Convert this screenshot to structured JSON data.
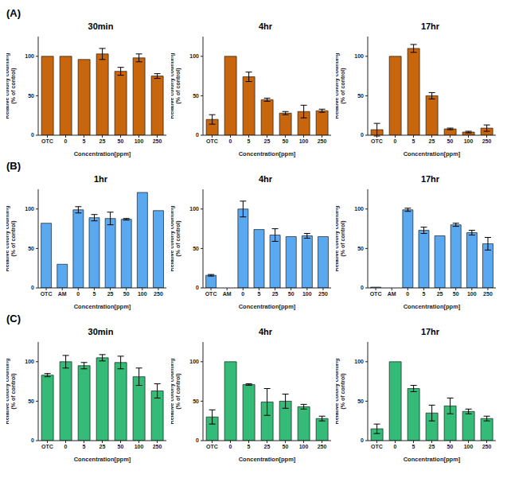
{
  "panel_labels": [
    "(A)",
    "(B)",
    "(C)"
  ],
  "chart_data": [
    {
      "type": "bar",
      "title": "30min",
      "categories": [
        "OTC",
        "0",
        "5",
        "25",
        "50",
        "100",
        "250"
      ],
      "values": [
        100,
        100,
        96,
        103,
        81,
        98,
        75
      ],
      "errors": [
        0,
        0,
        0,
        7,
        5,
        5,
        3
      ],
      "color": "#c8660e",
      "ylim": [
        0,
        125
      ],
      "yticks": [
        0,
        50,
        100
      ],
      "x_label": "Concentration[ppm]",
      "y_label": [
        "Relative colony counting",
        "(% of control)"
      ]
    },
    {
      "type": "bar",
      "title": "4hr",
      "categories": [
        "OTC",
        "0",
        "5",
        "25",
        "50",
        "100",
        "250"
      ],
      "values": [
        20,
        100,
        74,
        45,
        28,
        30,
        31
      ],
      "errors": [
        6,
        0,
        6,
        2,
        2,
        8,
        2
      ],
      "color": "#c8660e",
      "ylim": [
        0,
        125
      ],
      "yticks": [
        0,
        50,
        100
      ],
      "x_label": "Concentration[ppm]",
      "y_label": [
        "Relative colony counting",
        "(% of control)"
      ]
    },
    {
      "type": "bar",
      "title": "17hr",
      "categories": [
        "OTC",
        "0",
        "5",
        "25",
        "50",
        "100",
        "250"
      ],
      "values": [
        7,
        100,
        110,
        50,
        8,
        4,
        9
      ],
      "errors": [
        8,
        0,
        5,
        4,
        1,
        1,
        4
      ],
      "color": "#c8660e",
      "ylim": [
        0,
        125
      ],
      "yticks": [
        0,
        50,
        100
      ],
      "x_label": "Concentration[ppm]",
      "y_label": [
        "Relative colony counting",
        "(% of control)"
      ]
    },
    {
      "type": "bar",
      "title": "1hr",
      "categories": [
        "OTC",
        "AM",
        "0",
        "5",
        "25",
        "50",
        "100",
        "250"
      ],
      "values": [
        82,
        30,
        99,
        89,
        88,
        87,
        121,
        98
      ],
      "errors": [
        0,
        0,
        4,
        4,
        8,
        1,
        0,
        0
      ],
      "color": "#5aa9f0",
      "ylim": [
        0,
        125
      ],
      "yticks": [
        0,
        50,
        100
      ],
      "x_label": "Concentration[ppm]",
      "y_label": [
        "Relative colony counting",
        "(% of control)"
      ]
    },
    {
      "type": "bar",
      "title": "4hr",
      "categories": [
        "OTC",
        "AM",
        "0",
        "5",
        "25",
        "50",
        "100",
        "250"
      ],
      "values": [
        16,
        0,
        100,
        74,
        67,
        65,
        66,
        65
      ],
      "errors": [
        1,
        0,
        10,
        0,
        8,
        0,
        3,
        0
      ],
      "color": "#5aa9f0",
      "ylim": [
        0,
        125
      ],
      "yticks": [
        0,
        50,
        100
      ],
      "x_label": "Concentration[ppm]",
      "y_label": [
        "Relative colony counting",
        "(% of control)"
      ]
    },
    {
      "type": "bar",
      "title": "17hr",
      "categories": [
        "OTC",
        "AM",
        "0",
        "5",
        "25",
        "50",
        "100",
        "250"
      ],
      "values": [
        1,
        0,
        99,
        73,
        66,
        80,
        70,
        56
      ],
      "errors": [
        0,
        0,
        2,
        4,
        0,
        2,
        3,
        8
      ],
      "color": "#5aa9f0",
      "ylim": [
        0,
        125
      ],
      "yticks": [
        0,
        50,
        100
      ],
      "x_label": "Concentration[ppm]",
      "y_label": [
        "Relative colony counting",
        "(% of control)"
      ]
    },
    {
      "type": "bar",
      "title": "30min",
      "categories": [
        "OTC",
        "0",
        "5",
        "25",
        "50",
        "100",
        "250"
      ],
      "values": [
        83,
        100,
        95,
        105,
        99,
        81,
        63
      ],
      "errors": [
        2,
        8,
        4,
        4,
        8,
        11,
        9
      ],
      "color": "#33bb77",
      "ylim": [
        0,
        125
      ],
      "yticks": [
        0,
        50,
        100
      ],
      "x_label": "Concentration[ppm]",
      "y_label": [
        "Relative colony counting",
        "(% of control)"
      ]
    },
    {
      "type": "bar",
      "title": "4hr",
      "categories": [
        "OTC",
        "0",
        "5",
        "25",
        "50",
        "100",
        "250"
      ],
      "values": [
        30,
        100,
        71,
        49,
        50,
        43,
        28
      ],
      "errors": [
        9,
        0,
        1,
        17,
        9,
        3,
        3
      ],
      "color": "#33bb77",
      "ylim": [
        0,
        125
      ],
      "yticks": [
        0,
        50,
        100
      ],
      "x_label": "Concentration[ppm]",
      "y_label": [
        "Relative colony counting",
        "(% of control)"
      ]
    },
    {
      "type": "bar",
      "title": "17hr",
      "categories": [
        "OTC",
        "0",
        "5",
        "25",
        "50",
        "100",
        "250"
      ],
      "values": [
        15,
        100,
        66,
        35,
        44,
        37,
        28
      ],
      "errors": [
        6,
        0,
        4,
        10,
        10,
        3,
        3
      ],
      "color": "#33bb77",
      "ylim": [
        0,
        125
      ],
      "yticks": [
        0,
        50,
        100
      ],
      "x_label": "Concentration[ppm]",
      "y_label": [
        "Relative colony counting",
        "(% of control)"
      ]
    }
  ]
}
